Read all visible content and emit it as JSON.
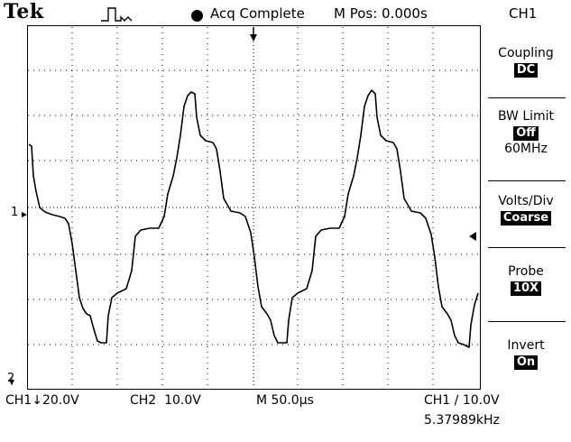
{
  "header": {
    "brand": "Tek",
    "trigger_status": "Acq Complete",
    "position": "M Pos: 0.000s",
    "channel": "CH1"
  },
  "menu": {
    "items": [
      {
        "label": "Coupling",
        "value": "DC",
        "extra": ""
      },
      {
        "label": "BW Limit",
        "value": "Off",
        "extra": "60MHz"
      },
      {
        "label": "Volts/Div",
        "value": "Coarse",
        "extra": ""
      },
      {
        "label": "Probe",
        "value": "10X",
        "extra": ""
      },
      {
        "label": "Invert",
        "value": "On",
        "extra": ""
      }
    ]
  },
  "markers": {
    "ch1_ground": "1",
    "ch2_ground": "2"
  },
  "footer": {
    "ch1_scale": "CH1↓20.0V",
    "ch2_scale": "CH2  10.0V",
    "time_scale": "M 50.0µs",
    "trigger": "CH1 ∕ 10.0V",
    "frequency": "5.37989kHz"
  },
  "colors": {
    "background": "#ffffff",
    "trace": "#000000",
    "grid": "#000000"
  },
  "waveform": {
    "description_levels": [
      "high",
      "step",
      "mid",
      "step",
      "low"
    ]
  }
}
